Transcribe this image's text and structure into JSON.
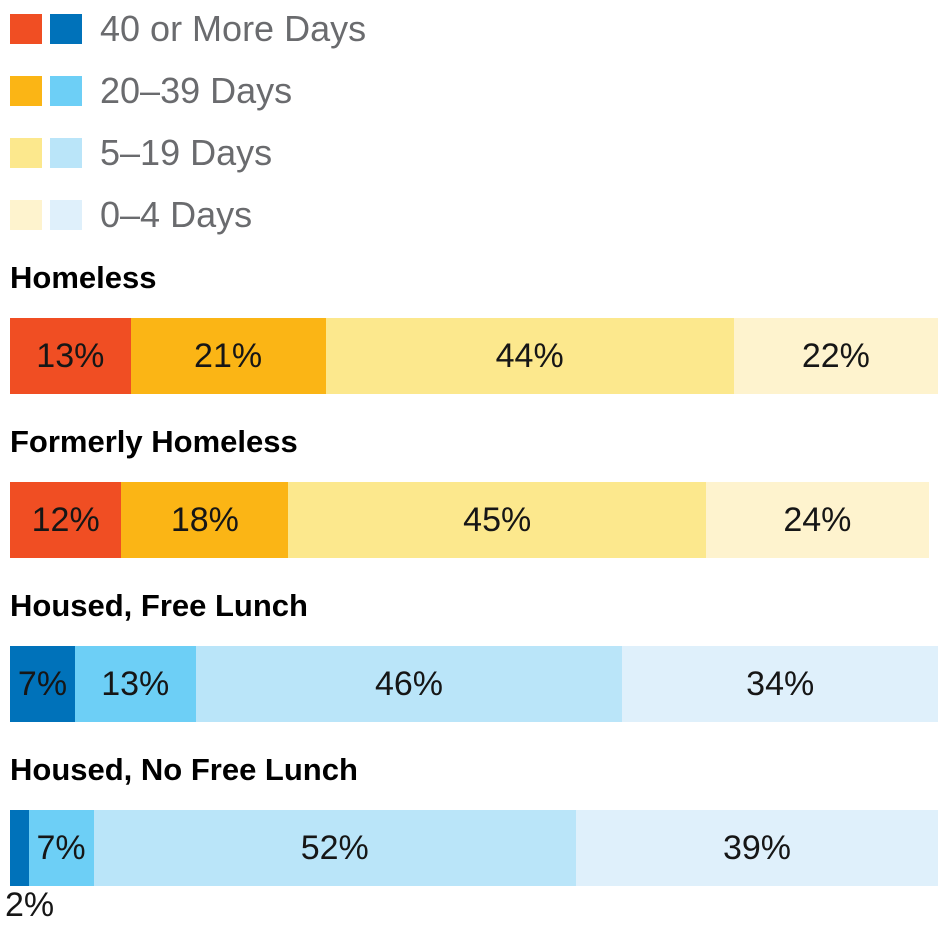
{
  "chart_data": {
    "type": "bar",
    "orientation": "horizontal",
    "stacked": true,
    "unit": "%",
    "xlim": [
      0,
      100
    ],
    "grid": false,
    "legend": {
      "position": "top-left",
      "entries": [
        {
          "label": "40 or More Days",
          "warm_color": "#f04e23",
          "cool_color": "#0072ba"
        },
        {
          "label": "20–39 Days",
          "warm_color": "#fbb515",
          "cool_color": "#6dcff6"
        },
        {
          "label": "5–19 Days",
          "warm_color": "#fce88d",
          "cool_color": "#bae5f9"
        },
        {
          "label": "0–4 Days",
          "warm_color": "#fef3ce",
          "cool_color": "#dff0fb"
        }
      ]
    },
    "categories": [
      "Homeless",
      "Formerly Homeless",
      "Housed, Free Lunch",
      "Housed, No Free Lunch"
    ],
    "series": [
      {
        "name": "40 or More Days",
        "values": [
          13,
          12,
          7,
          2
        ]
      },
      {
        "name": "20–39 Days",
        "values": [
          21,
          18,
          13,
          7
        ]
      },
      {
        "name": "5–19 Days",
        "values": [
          44,
          45,
          46,
          52
        ]
      },
      {
        "name": "0–4 Days",
        "values": [
          22,
          24,
          34,
          39
        ]
      }
    ],
    "rows": [
      {
        "title": "Homeless",
        "segments": [
          {
            "value": 13,
            "label": "13%",
            "color": "#f04e23",
            "label_position": "inside"
          },
          {
            "value": 21,
            "label": "21%",
            "color": "#fbb515",
            "label_position": "inside"
          },
          {
            "value": 44,
            "label": "44%",
            "color": "#fce88d",
            "label_position": "inside"
          },
          {
            "value": 22,
            "label": "22%",
            "color": "#fef3ce",
            "label_position": "inside"
          }
        ]
      },
      {
        "title": "Formerly Homeless",
        "segments": [
          {
            "value": 12,
            "label": "12%",
            "color": "#f04e23",
            "label_position": "inside"
          },
          {
            "value": 18,
            "label": "18%",
            "color": "#fbb515",
            "label_position": "inside"
          },
          {
            "value": 45,
            "label": "45%",
            "color": "#fce88d",
            "label_position": "inside"
          },
          {
            "value": 24,
            "label": "24%",
            "color": "#fef3ce",
            "label_position": "inside"
          }
        ]
      },
      {
        "title": "Housed, Free Lunch",
        "segments": [
          {
            "value": 7,
            "label": "7%",
            "color": "#0072ba",
            "label_position": "inside"
          },
          {
            "value": 13,
            "label": "13%",
            "color": "#6dcff6",
            "label_position": "inside"
          },
          {
            "value": 46,
            "label": "46%",
            "color": "#bae5f9",
            "label_position": "inside"
          },
          {
            "value": 34,
            "label": "34%",
            "color": "#dff0fb",
            "label_position": "inside"
          }
        ]
      },
      {
        "title": "Housed, No Free Lunch",
        "segments": [
          {
            "value": 2,
            "label": "2%",
            "color": "#0072ba",
            "label_position": "below"
          },
          {
            "value": 7,
            "label": "7%",
            "color": "#6dcff6",
            "label_position": "inside"
          },
          {
            "value": 52,
            "label": "52%",
            "color": "#bae5f9",
            "label_position": "inside"
          },
          {
            "value": 39,
            "label": "39%",
            "color": "#dff0fb",
            "label_position": "inside"
          }
        ]
      }
    ]
  },
  "styles": {
    "legend_text_color": "#6a6b6e",
    "title_text_color": "#000000",
    "segment_label_color": "#161616",
    "background_color": "#ffffff"
  }
}
